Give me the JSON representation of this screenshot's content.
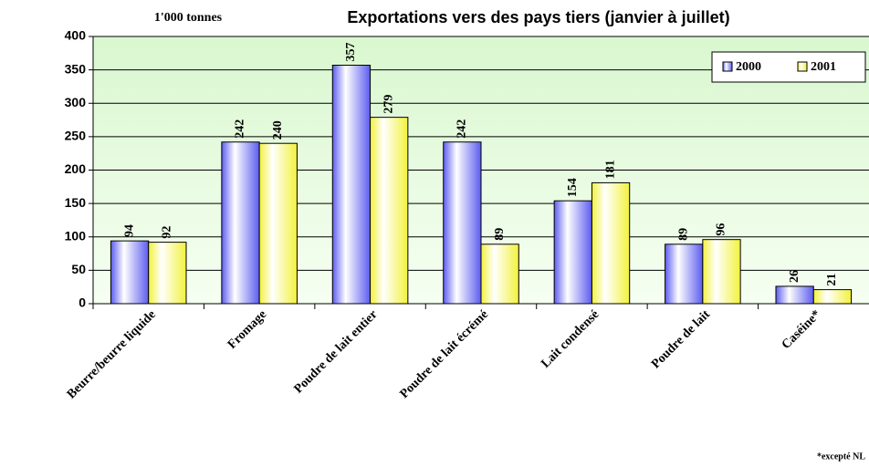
{
  "chart_data": {
    "type": "bar",
    "title": "Exportations vers des pays tiers (janvier à juillet)",
    "y_label": "1'000 tonnes",
    "footnote": "*excepté NL",
    "categories": [
      "Beurre/beurre liquide",
      "Fromage",
      "Poudre de lait entier",
      "Poudre de lait écrémé",
      "Lait condensé",
      "Poudre de lait",
      "Caséine*"
    ],
    "series": [
      {
        "name": "2000",
        "color": "#5c5cf0",
        "values": [
          94,
          242,
          357,
          242,
          154,
          89,
          26
        ]
      },
      {
        "name": "2001",
        "color": "#f2f23c",
        "values": [
          92,
          240,
          279,
          89,
          181,
          96,
          21
        ]
      }
    ],
    "ylim": [
      0,
      400
    ],
    "yticks": [
      0,
      50,
      100,
      150,
      200,
      250,
      300,
      350,
      400
    ],
    "grid": true,
    "legend": "top-right"
  }
}
